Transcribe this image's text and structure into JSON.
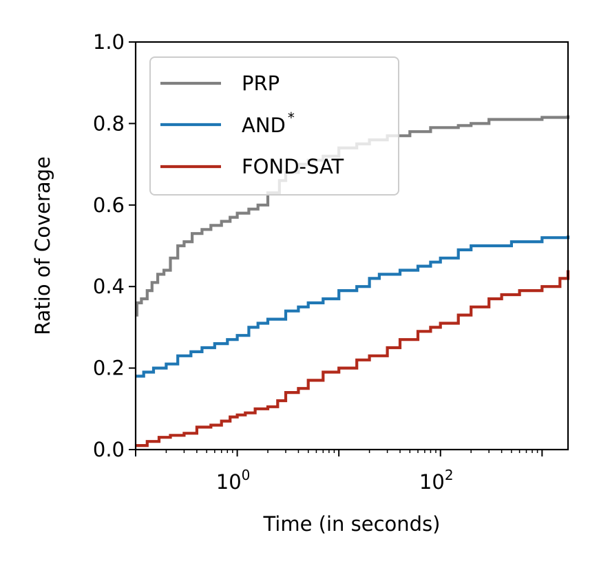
{
  "chart_data": {
    "type": "line",
    "step": true,
    "xscale": "log10",
    "xlim": [
      0.1,
      1800
    ],
    "ylim": [
      0.0,
      1.0
    ],
    "xlabel": "Time (in seconds)",
    "ylabel": "Ratio of Coverage",
    "xticks": [
      {
        "value": 1,
        "base": "10",
        "exp": "0"
      },
      {
        "value": 100,
        "base": "10",
        "exp": "2"
      }
    ],
    "yticks": [
      0.0,
      0.2,
      0.4,
      0.6,
      0.8,
      1.0
    ],
    "ytick_labels": [
      "0.0",
      "0.2",
      "0.4",
      "0.6",
      "0.8",
      "1.0"
    ],
    "legend_position": "top-left",
    "grid": false,
    "series": [
      {
        "name": "PRP",
        "color": "#808080",
        "x": [
          0.1,
          0.103,
          0.114,
          0.13,
          0.145,
          0.165,
          0.19,
          0.22,
          0.26,
          0.3,
          0.36,
          0.45,
          0.55,
          0.7,
          0.85,
          1.0,
          1.3,
          1.6,
          2.0,
          2.6,
          3.0,
          4.0,
          5.0,
          7.0,
          10.0,
          15.0,
          20.0,
          30.0,
          50.0,
          80.0,
          100.0,
          150.0,
          200.0,
          300.0,
          500.0,
          1000.0,
          1800.0
        ],
        "y": [
          0.33,
          0.36,
          0.37,
          0.39,
          0.41,
          0.43,
          0.44,
          0.47,
          0.5,
          0.51,
          0.53,
          0.54,
          0.55,
          0.56,
          0.57,
          0.58,
          0.59,
          0.6,
          0.63,
          0.66,
          0.68,
          0.7,
          0.71,
          0.72,
          0.74,
          0.75,
          0.76,
          0.77,
          0.78,
          0.79,
          0.79,
          0.795,
          0.8,
          0.81,
          0.81,
          0.815,
          0.82
        ]
      },
      {
        "name": "AND*",
        "label_base": "AND",
        "label_sup": "*",
        "color": "#1f77b4",
        "x": [
          0.1,
          0.12,
          0.15,
          0.2,
          0.26,
          0.35,
          0.45,
          0.6,
          0.8,
          1.0,
          1.3,
          1.6,
          2.0,
          3.0,
          4.0,
          5.0,
          7.0,
          10.0,
          15.0,
          20.0,
          25.0,
          30.0,
          40.0,
          60.0,
          80.0,
          100.0,
          150.0,
          200.0,
          300.0,
          500.0,
          1000.0,
          1800.0
        ],
        "y": [
          0.18,
          0.19,
          0.2,
          0.21,
          0.23,
          0.24,
          0.25,
          0.26,
          0.27,
          0.28,
          0.3,
          0.31,
          0.32,
          0.34,
          0.35,
          0.36,
          0.37,
          0.39,
          0.4,
          0.42,
          0.43,
          0.43,
          0.44,
          0.45,
          0.46,
          0.47,
          0.49,
          0.5,
          0.5,
          0.51,
          0.52,
          0.525
        ]
      },
      {
        "name": "FOND-SAT",
        "color": "#b22a1b",
        "x": [
          0.1,
          0.13,
          0.17,
          0.22,
          0.3,
          0.4,
          0.55,
          0.7,
          0.85,
          1.0,
          1.2,
          1.5,
          2.0,
          2.5,
          3.0,
          4.0,
          5.0,
          7.0,
          10.0,
          15.0,
          20.0,
          30.0,
          40.0,
          60.0,
          80.0,
          100.0,
          150.0,
          200.0,
          300.0,
          400.0,
          600.0,
          1000.0,
          1500.0,
          1800.0
        ],
        "y": [
          0.01,
          0.02,
          0.03,
          0.035,
          0.04,
          0.055,
          0.06,
          0.07,
          0.08,
          0.085,
          0.09,
          0.1,
          0.105,
          0.12,
          0.14,
          0.15,
          0.17,
          0.19,
          0.2,
          0.22,
          0.23,
          0.25,
          0.27,
          0.29,
          0.3,
          0.31,
          0.33,
          0.35,
          0.37,
          0.38,
          0.39,
          0.4,
          0.42,
          0.44
        ]
      }
    ]
  }
}
